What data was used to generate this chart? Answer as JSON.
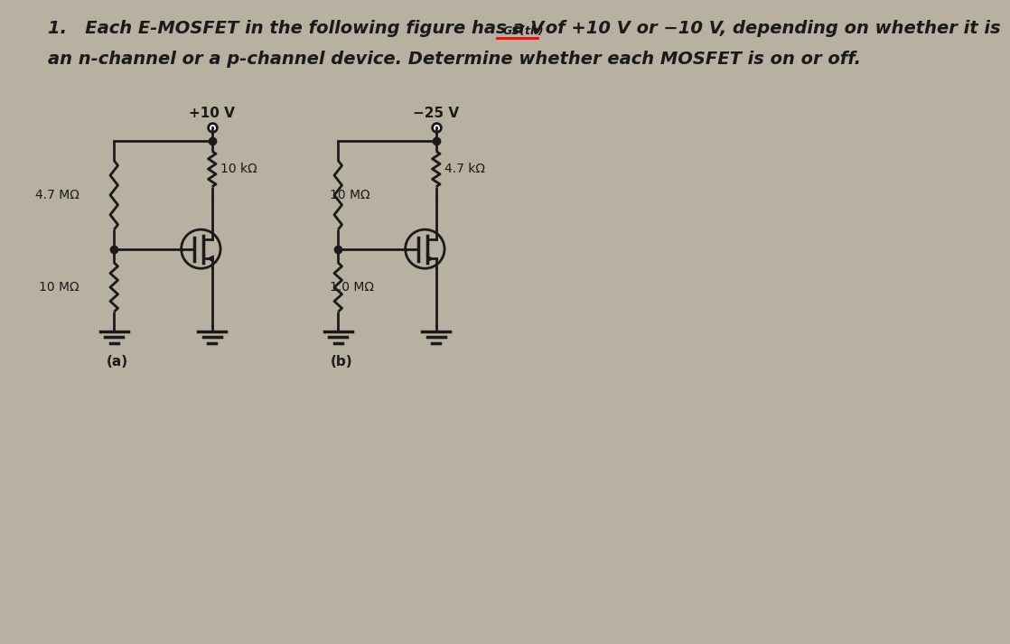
{
  "bg_color": "#b8b0a0",
  "text_color": "#1a1a1a",
  "line_color": "#1a1a1a",
  "circuit_a_label": "(a)",
  "circuit_b_label": "(b)",
  "vcc_a": "+10 V",
  "vcc_b": "−25 V",
  "r1_a": "4.7 MΩ",
  "r2_a": "10 kΩ",
  "r3_a": "10 MΩ",
  "r1_b": "10 MΩ",
  "r2_b": "4.7 kΩ",
  "r3_b": "1.0 MΩ",
  "title_pre": "1.   Each E-MOSFET in the following figure has a V",
  "title_sub": "GS(th)",
  "title_post": " of +10 V or −10 V, depending on whether it is",
  "title_line2": "an n-channel or a p-channel device. Determine whether each MOSFET is on or off."
}
